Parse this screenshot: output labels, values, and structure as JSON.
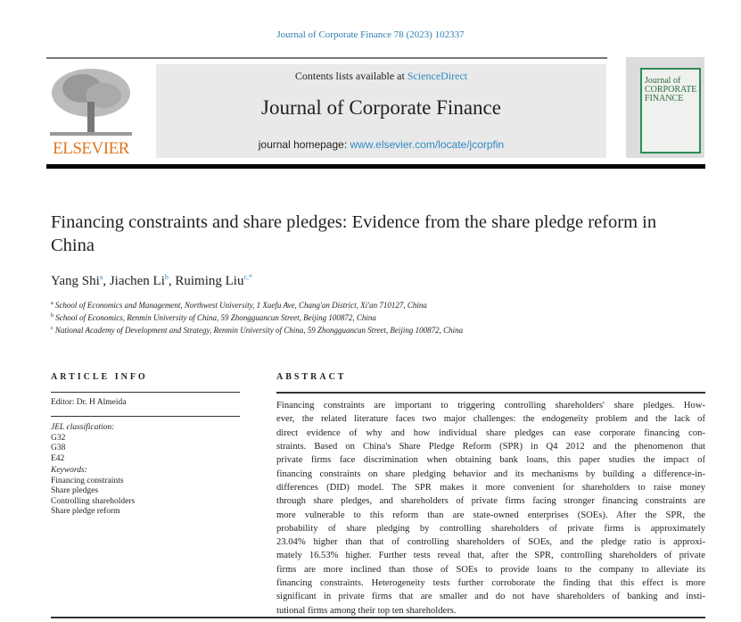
{
  "running_header": "Journal of Corporate Finance 78 (2023) 102337",
  "publisher": {
    "name": "ELSEVIER",
    "color": "#e0761f"
  },
  "banner": {
    "contents_prefix": "Contents lists available at ",
    "contents_link": "ScienceDirect",
    "journal_name": "Journal of Corporate Finance",
    "homepage_prefix": "journal homepage: ",
    "homepage_link": "www.elsevier.com/locate/jcorpfin"
  },
  "cover": {
    "title_lines": [
      "Journal of",
      "CORPORATE",
      "FINANCE"
    ]
  },
  "article": {
    "title": "Financing constraints and share pledges: Evidence from the share pledge reform in China",
    "authors": [
      {
        "name": "Yang Shi",
        "mark": "a"
      },
      {
        "name": "Jiachen Li",
        "mark": "b"
      },
      {
        "name": "Ruiming Liu",
        "mark": "c,*"
      }
    ],
    "affiliations": [
      {
        "mark": "a",
        "text": "School of Economics and Management, Northwest University, 1 Xuefu Ave, Chang'an District, Xi'an 710127, China"
      },
      {
        "mark": "b",
        "text": "School of Economics, Renmin University of China, 59 Zhongguancun Street, Beijing 100872, China"
      },
      {
        "mark": "c",
        "text": "National Academy of Development and Strategy, Renmin University of China, 59 Zhongguancun Street, Beijing 100872, China"
      }
    ]
  },
  "article_info": {
    "heading": "ARTICLE INFO",
    "editor": "Editor: Dr. H Almeida",
    "jel_label": "JEL classification:",
    "jel_codes": [
      "G32",
      "G38",
      "E42"
    ],
    "keywords_label": "Keywords:",
    "keywords": [
      "Financing constraints",
      "Share pledges",
      "Controlling shareholders",
      "Share pledge reform"
    ]
  },
  "abstract": {
    "heading": "ABSTRACT",
    "lines": [
      "Financing constraints are important to triggering controlling shareholders' share pledges. How-",
      "ever, the related literature faces two major challenges: the endogeneity problem and the lack of",
      "direct evidence of why and how individual share pledges can ease corporate financing con-",
      "straints. Based on China's Share Pledge Reform (SPR) in Q4 2012 and the phenomenon that",
      "private firms face discrimination when obtaining bank loans, this paper studies the impact of",
      "financing constraints on share pledging behavior and its mechanisms by building a difference-in-",
      "differences (DID) model. The SPR makes it more convenient for shareholders to raise money",
      "through share pledges, and shareholders of private firms facing stronger financing constraints are",
      "more vulnerable to this reform than are state-owned enterprises (SOEs). After the SPR, the",
      "probability of share pledging by controlling shareholders of private firms is approximately",
      "23.04% higher than that of controlling shareholders of SOEs, and the pledge ratio is approxi-",
      "mately 16.53% higher. Further tests reveal that, after the SPR, controlling shareholders of private",
      "firms are more inclined than those of SOEs to provide loans to the company to alleviate its",
      "financing constraints. Heterogeneity tests further corroborate the finding that this effect is more",
      "significant in private firms that are smaller and do not have shareholders of banking and insti-",
      "tutional firms among their top ten shareholders."
    ]
  },
  "colors": {
    "link": "#2e8bc4",
    "banner_bg": "#e9e9e9"
  }
}
